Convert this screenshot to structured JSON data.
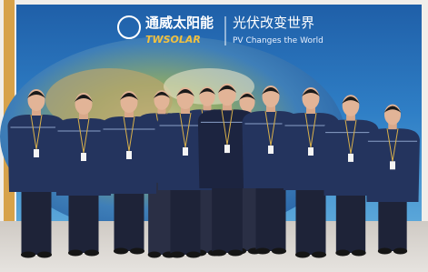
{
  "banner": {
    "brand_cn": "通威太阳能",
    "brand_en": "TWSOLAR",
    "slogan_cn": "光伏改变世界",
    "slogan_en": "PV Changes the World"
  }
}
